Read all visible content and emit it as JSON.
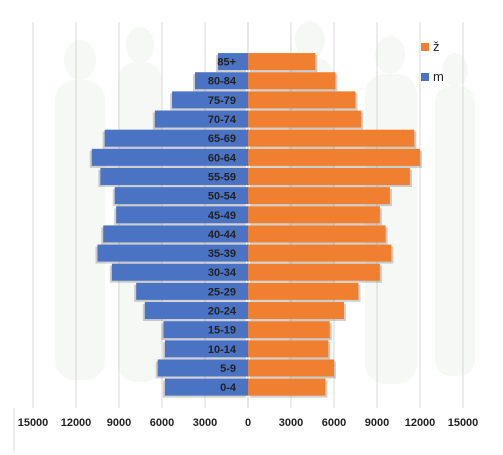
{
  "chart_data": {
    "type": "bar",
    "orientation": "horizontal",
    "layout": "population-pyramid",
    "categories": [
      "0-4",
      "5-9",
      "10-14",
      "15-19",
      "20-24",
      "25-29",
      "30-34",
      "35-39",
      "40-44",
      "45-49",
      "50-54",
      "55-59",
      "60-64",
      "65-69",
      "70-74",
      "75-79",
      "80-84",
      "85+"
    ],
    "series": [
      {
        "name": "ž",
        "side": "right",
        "color": "#F07F2F",
        "values": [
          5400,
          6000,
          5600,
          5700,
          6700,
          7700,
          9200,
          10000,
          9600,
          9200,
          9900,
          11300,
          12000,
          11600,
          7900,
          7500,
          6100,
          4700
        ]
      },
      {
        "name": "m",
        "side": "left",
        "color": "#4A73C4",
        "values": [
          5800,
          6300,
          5800,
          5900,
          7200,
          7800,
          9500,
          10500,
          10100,
          9200,
          9300,
          10300,
          10900,
          10000,
          6500,
          5300,
          3700,
          2100
        ]
      }
    ],
    "x_ticks": [
      "15000",
      "12000",
      "9000",
      "6000",
      "3000",
      "0",
      "3000",
      "6000",
      "9000",
      "12000",
      "15000"
    ],
    "xlim": [
      -15000,
      15000
    ],
    "grid": true,
    "legend_position": "top-right"
  }
}
